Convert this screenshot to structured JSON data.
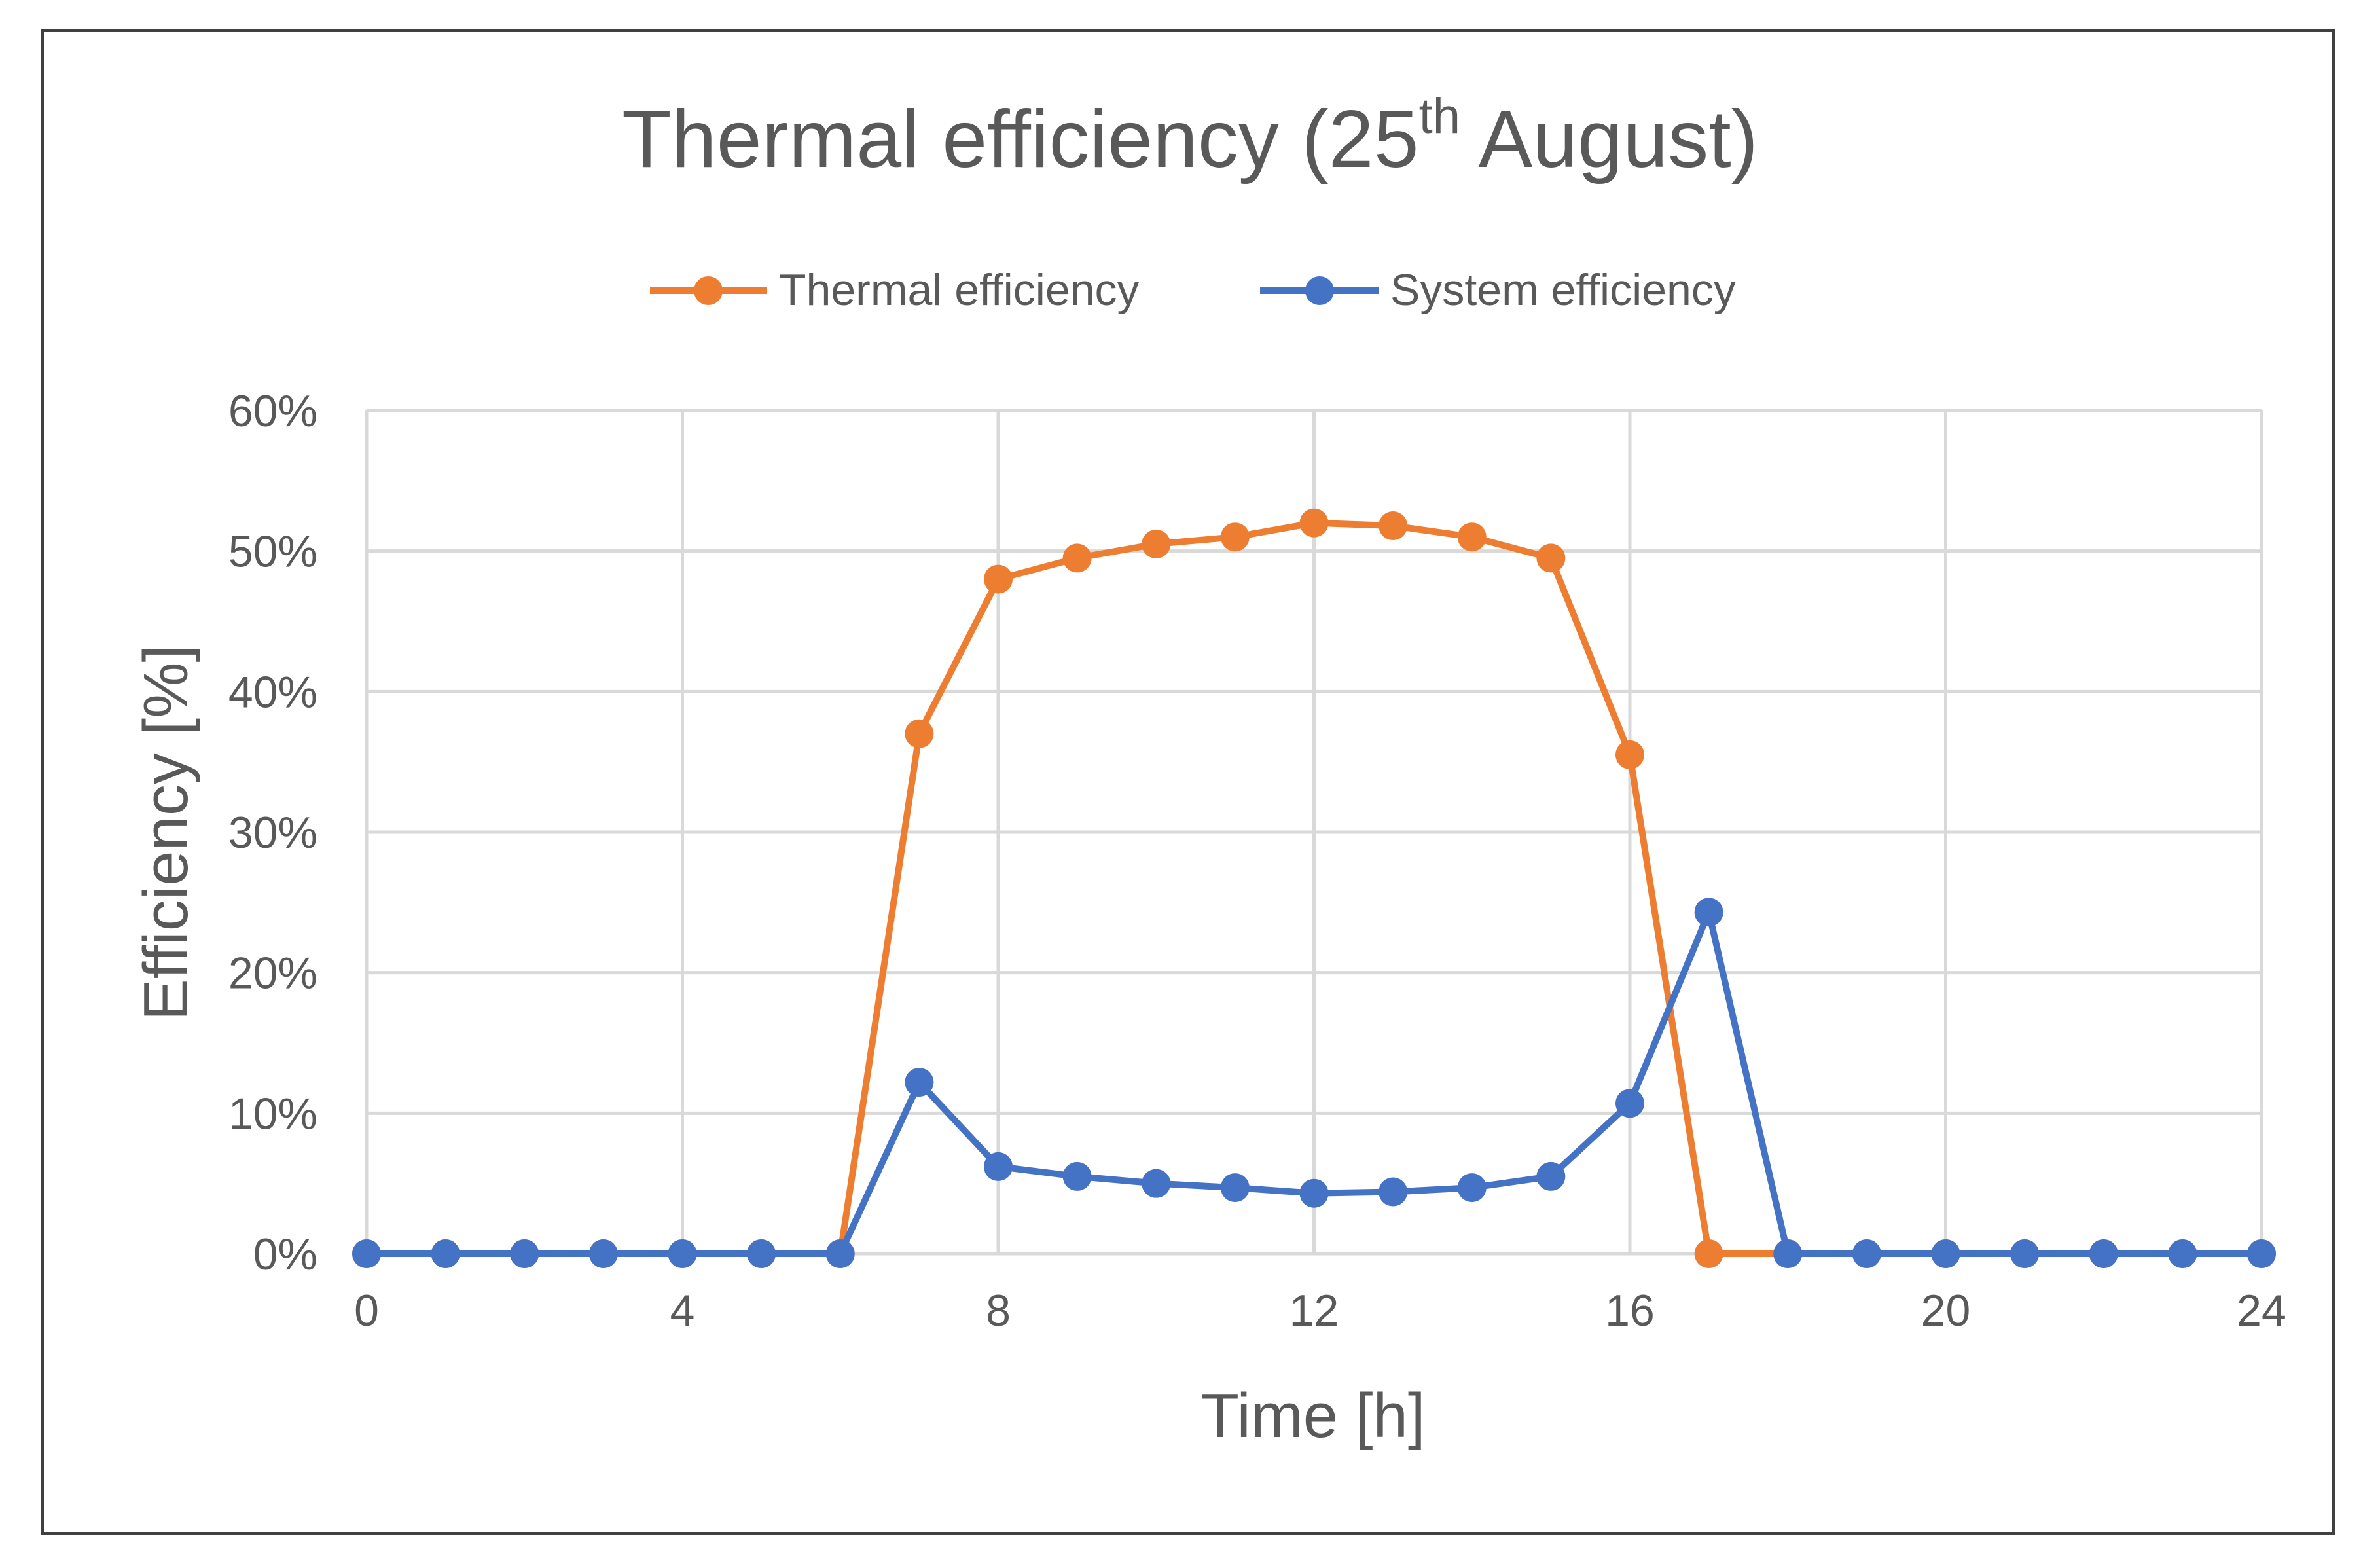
{
  "chart_data": {
    "type": "line",
    "title": {
      "main": "Thermal efficiency (25",
      "superscript": "th",
      "tail": " August)"
    },
    "xlabel": "Time [h]",
    "ylabel": "Efficiency [%]",
    "xlim": [
      0,
      24
    ],
    "ylim": [
      0,
      0.6
    ],
    "xticks": [
      0,
      4,
      8,
      12,
      16,
      20,
      24
    ],
    "xtick_labels": [
      "0",
      "4",
      "8",
      "12",
      "16",
      "20",
      "24"
    ],
    "yticks": [
      0,
      0.1,
      0.2,
      0.3,
      0.4,
      0.5,
      0.6
    ],
    "ytick_labels": [
      "0%",
      "10%",
      "20%",
      "30%",
      "40%",
      "50%",
      "60%"
    ],
    "grid": true,
    "legend_position": "top",
    "x": [
      0,
      1,
      2,
      3,
      4,
      5,
      6,
      7,
      8,
      9,
      10,
      11,
      12,
      13,
      14,
      15,
      16,
      17,
      18,
      19,
      20,
      21,
      22,
      23,
      24
    ],
    "series": [
      {
        "name": "Thermal efficiency",
        "color": "#ED7D31",
        "values": [
          0,
          0,
          0,
          0,
          0,
          0,
          0,
          0.37,
          0.48,
          0.495,
          0.505,
          0.51,
          0.52,
          0.518,
          0.51,
          0.495,
          0.355,
          0,
          0,
          0,
          0,
          0,
          0,
          0,
          0
        ]
      },
      {
        "name": "System efficiency",
        "color": "#4472C4",
        "values": [
          0,
          0,
          0,
          0,
          0,
          0,
          0,
          0.122,
          0.062,
          0.055,
          0.05,
          0.047,
          0.043,
          0.044,
          0.047,
          0.055,
          0.107,
          0.243,
          0,
          0,
          0,
          0,
          0,
          0,
          0
        ]
      }
    ]
  }
}
